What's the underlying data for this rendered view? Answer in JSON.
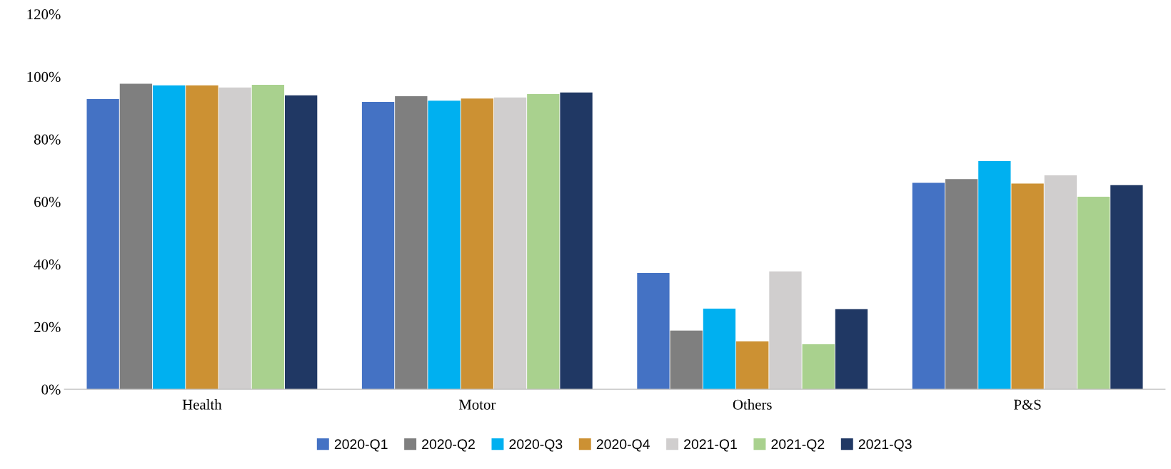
{
  "chart_data": {
    "type": "bar",
    "categories": [
      "Health",
      "Motor",
      "Others",
      "P&S"
    ],
    "series": [
      {
        "name": "2020-Q1",
        "color": "#4472c4",
        "values": [
          92.8,
          91.9,
          37.2,
          66.0
        ]
      },
      {
        "name": "2020-Q2",
        "color": "#7f7f7f",
        "values": [
          97.7,
          93.7,
          18.8,
          67.2
        ]
      },
      {
        "name": "2020-Q3",
        "color": "#00b0f0",
        "values": [
          97.2,
          92.3,
          25.8,
          73.0
        ]
      },
      {
        "name": "2020-Q4",
        "color": "#cc9133",
        "values": [
          97.2,
          93.0,
          15.3,
          65.8
        ]
      },
      {
        "name": "2021-Q1",
        "color": "#d0cece",
        "values": [
          96.5,
          93.3,
          37.7,
          68.4
        ]
      },
      {
        "name": "2021-Q2",
        "color": "#a9d18e",
        "values": [
          97.4,
          94.4,
          14.4,
          61.6
        ]
      },
      {
        "name": "2021-Q3",
        "color": "#203864",
        "values": [
          94.0,
          94.9,
          25.6,
          65.3
        ]
      }
    ],
    "ylim": [
      0,
      120
    ],
    "yticks": [
      {
        "value": 0,
        "label": "0%"
      },
      {
        "value": 20,
        "label": "20%"
      },
      {
        "value": 40,
        "label": "40%"
      },
      {
        "value": 60,
        "label": "60%"
      },
      {
        "value": 80,
        "label": "80%"
      },
      {
        "value": 100,
        "label": "100%"
      },
      {
        "value": 120,
        "label": "120%"
      }
    ],
    "grid": false,
    "legend": "bottom"
  }
}
